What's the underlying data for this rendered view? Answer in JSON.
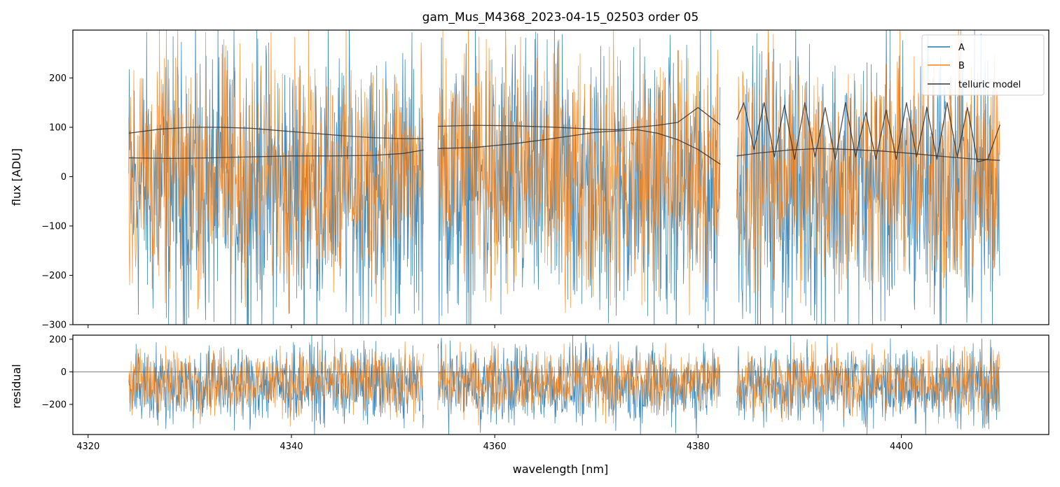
{
  "chart_data": [
    {
      "type": "line",
      "title": "gam_Mus_M4368_2023-04-15_02503  order 05",
      "xlabel": "",
      "ylabel": "flux [ADU]",
      "xlim": [
        4318.5,
        4414.5
      ],
      "ylim": [
        -300,
        297
      ],
      "yticks": [
        -300,
        -200,
        -100,
        0,
        100,
        200
      ],
      "legend": {
        "placement": "top-right"
      },
      "segments": [
        [
          4324.0,
          4353.0
        ],
        [
          4354.4,
          4382.2
        ],
        [
          4383.8,
          4409.7
        ]
      ],
      "series": [
        {
          "name": "A",
          "color": "#1f77b4",
          "noise": {
            "center": -20,
            "amplitude": 140
          }
        },
        {
          "name": "B",
          "color": "#ff7f0e",
          "noise": {
            "center": 10,
            "amplitude": 120
          }
        },
        {
          "name": "telluric model",
          "color": "#333333",
          "curves": [
            {
              "x": [
                4324.0,
                4327,
                4330,
                4333,
                4336,
                4339,
                4342,
                4345,
                4348,
                4351,
                4353.0
              ],
              "y": [
                88,
                96,
                100,
                100,
                98,
                93,
                88,
                83,
                79,
                77,
                77
              ]
            },
            {
              "x": [
                4324.0,
                4328,
                4332,
                4336,
                4340,
                4344,
                4348,
                4351,
                4353.0
              ],
              "y": [
                38,
                37,
                38,
                40,
                42,
                42,
                43,
                47,
                54
              ]
            },
            {
              "x": [
                4354.4,
                4358,
                4362,
                4366,
                4370,
                4372,
                4374,
                4376,
                4378,
                4380,
                4382.2
              ],
              "y": [
                102,
                104,
                103,
                100,
                96,
                95,
                100,
                104,
                110,
                140,
                105
              ]
            },
            {
              "x": [
                4354.4,
                4358,
                4362,
                4366,
                4370,
                4374,
                4376,
                4378,
                4380,
                4382.2
              ],
              "y": [
                57,
                59,
                67,
                78,
                90,
                95,
                88,
                75,
                55,
                25
              ]
            },
            {
              "x": [
                4383.8,
                4384.5,
                4385.5,
                4386.5,
                4387.5,
                4388.5,
                4389.5,
                4390.5,
                4391.5,
                4392.5,
                4393.5,
                4394.5,
                4395.5,
                4396.5,
                4397.5,
                4398.5,
                4399.5,
                4400.5,
                4401.5,
                4402.5,
                4403.5,
                4404.5,
                4405.5,
                4406.5,
                4407.5,
                4408.5,
                4409.7
              ],
              "y": [
                115,
                150,
                55,
                150,
                40,
                145,
                35,
                150,
                40,
                140,
                35,
                150,
                40,
                130,
                35,
                135,
                35,
                150,
                40,
                140,
                35,
                150,
                40,
                140,
                30,
                35,
                105
              ]
            },
            {
              "x": [
                4383.8,
                4386,
                4389,
                4392,
                4395,
                4398,
                4401,
                4404,
                4407,
                4409.7
              ],
              "y": [
                42,
                48,
                54,
                57,
                55,
                52,
                47,
                41,
                36,
                33
              ]
            }
          ]
        }
      ]
    },
    {
      "type": "line",
      "title": "",
      "xlabel": "wavelength [nm]",
      "ylabel": "residual",
      "xlim": [
        4318.5,
        4414.5
      ],
      "ylim": [
        -385,
        225
      ],
      "xticks": [
        4320,
        4340,
        4360,
        4380,
        4400
      ],
      "yticks": [
        -200,
        0,
        200
      ],
      "reference_line": 0,
      "series": [
        {
          "name": "A",
          "color": "#1f77b4",
          "noise": {
            "center": -80,
            "amplitude": 120
          }
        },
        {
          "name": "B",
          "color": "#ff7f0e",
          "noise": {
            "center": -60,
            "amplitude": 100
          }
        }
      ]
    }
  ]
}
